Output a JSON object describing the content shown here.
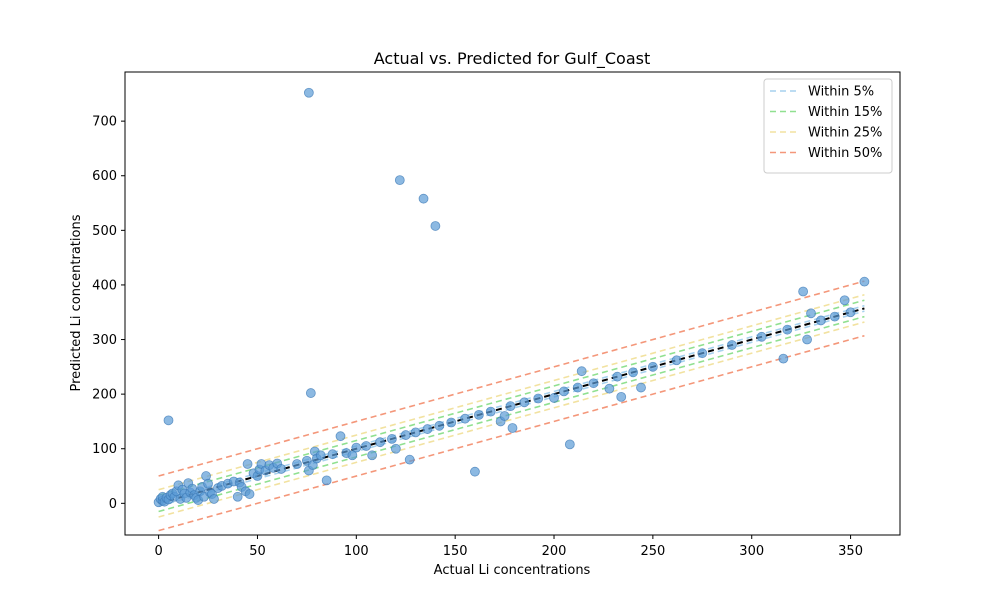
{
  "chart_data": {
    "type": "scatter",
    "title": "Actual vs. Predicted for Gulf_Coast",
    "xlabel": "Actual Li concentrations",
    "ylabel": "Predicted Li concentrations",
    "xlim": [
      -17,
      375
    ],
    "ylim": [
      -58,
      790
    ],
    "xticks": [
      0,
      50,
      100,
      150,
      200,
      250,
      300,
      350
    ],
    "yticks": [
      0,
      100,
      200,
      300,
      400,
      500,
      600,
      700
    ],
    "grid": false,
    "legend_position": "top-right",
    "point_color": "#5b9bd5",
    "identity_line": {
      "x": [
        0,
        357
      ],
      "color": "#000000",
      "style": "dashed"
    },
    "bands": [
      {
        "name": "Within 5%",
        "offset": 5,
        "color": "#a6d1ee"
      },
      {
        "name": "Within 15%",
        "offset": 15,
        "color": "#90e090"
      },
      {
        "name": "Within 25%",
        "offset": 25,
        "color": "#f2e2a0"
      },
      {
        "name": "Within 50%",
        "offset": 50,
        "color": "#f4977a"
      }
    ],
    "points": [
      {
        "x": 0,
        "y": 2
      },
      {
        "x": 1,
        "y": 8
      },
      {
        "x": 2,
        "y": 5
      },
      {
        "x": 2,
        "y": 12
      },
      {
        "x": 3,
        "y": 3
      },
      {
        "x": 4,
        "y": 10
      },
      {
        "x": 5,
        "y": 7
      },
      {
        "x": 6,
        "y": 15
      },
      {
        "x": 5,
        "y": 152
      },
      {
        "x": 7,
        "y": 18
      },
      {
        "x": 8,
        "y": 12
      },
      {
        "x": 9,
        "y": 22
      },
      {
        "x": 10,
        "y": 33
      },
      {
        "x": 11,
        "y": 8
      },
      {
        "x": 12,
        "y": 25
      },
      {
        "x": 13,
        "y": 18
      },
      {
        "x": 14,
        "y": 10
      },
      {
        "x": 15,
        "y": 37
      },
      {
        "x": 16,
        "y": 20
      },
      {
        "x": 17,
        "y": 27
      },
      {
        "x": 18,
        "y": 15
      },
      {
        "x": 19,
        "y": 10
      },
      {
        "x": 20,
        "y": 6
      },
      {
        "x": 21,
        "y": 22
      },
      {
        "x": 22,
        "y": 30
      },
      {
        "x": 23,
        "y": 12
      },
      {
        "x": 24,
        "y": 50
      },
      {
        "x": 25,
        "y": 36
      },
      {
        "x": 26,
        "y": 20
      },
      {
        "x": 27,
        "y": 17
      },
      {
        "x": 28,
        "y": 8
      },
      {
        "x": 30,
        "y": 28
      },
      {
        "x": 32,
        "y": 32
      },
      {
        "x": 35,
        "y": 36
      },
      {
        "x": 38,
        "y": 40
      },
      {
        "x": 40,
        "y": 12
      },
      {
        "x": 41,
        "y": 38
      },
      {
        "x": 42,
        "y": 30
      },
      {
        "x": 44,
        "y": 22
      },
      {
        "x": 45,
        "y": 72
      },
      {
        "x": 46,
        "y": 17
      },
      {
        "x": 48,
        "y": 55
      },
      {
        "x": 50,
        "y": 50
      },
      {
        "x": 51,
        "y": 62
      },
      {
        "x": 52,
        "y": 72
      },
      {
        "x": 54,
        "y": 60
      },
      {
        "x": 56,
        "y": 70
      },
      {
        "x": 58,
        "y": 65
      },
      {
        "x": 60,
        "y": 73
      },
      {
        "x": 62,
        "y": 63
      },
      {
        "x": 70,
        "y": 72
      },
      {
        "x": 75,
        "y": 78
      },
      {
        "x": 76,
        "y": 752
      },
      {
        "x": 76,
        "y": 60
      },
      {
        "x": 77,
        "y": 202
      },
      {
        "x": 78,
        "y": 70
      },
      {
        "x": 79,
        "y": 95
      },
      {
        "x": 80,
        "y": 82
      },
      {
        "x": 82,
        "y": 88
      },
      {
        "x": 85,
        "y": 42
      },
      {
        "x": 88,
        "y": 90
      },
      {
        "x": 92,
        "y": 123
      },
      {
        "x": 95,
        "y": 92
      },
      {
        "x": 98,
        "y": 88
      },
      {
        "x": 100,
        "y": 102
      },
      {
        "x": 105,
        "y": 105
      },
      {
        "x": 108,
        "y": 88
      },
      {
        "x": 112,
        "y": 112
      },
      {
        "x": 118,
        "y": 118
      },
      {
        "x": 120,
        "y": 100
      },
      {
        "x": 122,
        "y": 592
      },
      {
        "x": 125,
        "y": 125
      },
      {
        "x": 127,
        "y": 80
      },
      {
        "x": 130,
        "y": 130
      },
      {
        "x": 134,
        "y": 558
      },
      {
        "x": 136,
        "y": 136
      },
      {
        "x": 140,
        "y": 508
      },
      {
        "x": 142,
        "y": 142
      },
      {
        "x": 148,
        "y": 148
      },
      {
        "x": 155,
        "y": 155
      },
      {
        "x": 160,
        "y": 58
      },
      {
        "x": 162,
        "y": 162
      },
      {
        "x": 168,
        "y": 168
      },
      {
        "x": 173,
        "y": 150
      },
      {
        "x": 175,
        "y": 160
      },
      {
        "x": 178,
        "y": 178
      },
      {
        "x": 179,
        "y": 138
      },
      {
        "x": 185,
        "y": 185
      },
      {
        "x": 192,
        "y": 192
      },
      {
        "x": 200,
        "y": 193
      },
      {
        "x": 205,
        "y": 205
      },
      {
        "x": 208,
        "y": 108
      },
      {
        "x": 212,
        "y": 212
      },
      {
        "x": 214,
        "y": 242
      },
      {
        "x": 220,
        "y": 220
      },
      {
        "x": 228,
        "y": 210
      },
      {
        "x": 232,
        "y": 232
      },
      {
        "x": 234,
        "y": 195
      },
      {
        "x": 240,
        "y": 240
      },
      {
        "x": 244,
        "y": 212
      },
      {
        "x": 250,
        "y": 250
      },
      {
        "x": 262,
        "y": 262
      },
      {
        "x": 275,
        "y": 275
      },
      {
        "x": 290,
        "y": 290
      },
      {
        "x": 305,
        "y": 305
      },
      {
        "x": 316,
        "y": 265
      },
      {
        "x": 318,
        "y": 318
      },
      {
        "x": 326,
        "y": 388
      },
      {
        "x": 328,
        "y": 300
      },
      {
        "x": 330,
        "y": 348
      },
      {
        "x": 335,
        "y": 335
      },
      {
        "x": 342,
        "y": 342
      },
      {
        "x": 347,
        "y": 372
      },
      {
        "x": 350,
        "y": 350
      },
      {
        "x": 357,
        "y": 406
      }
    ]
  }
}
